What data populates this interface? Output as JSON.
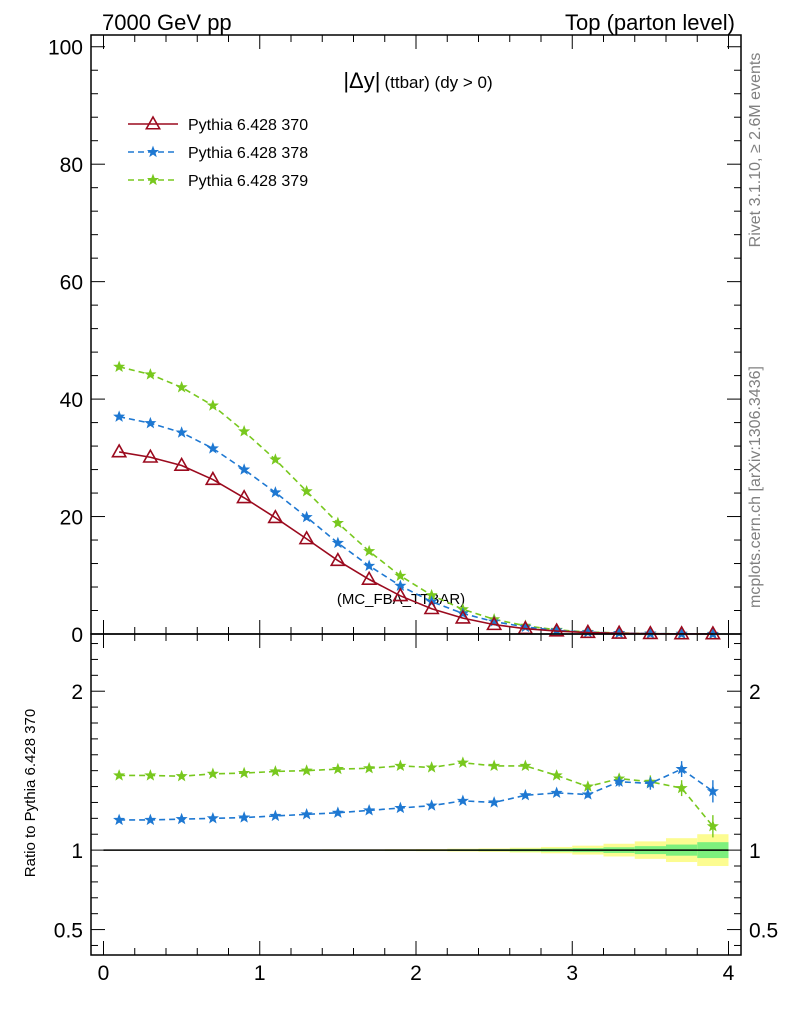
{
  "header": {
    "energy_label": "7000 GeV pp",
    "process_label": "Top (parton level)"
  },
  "side_labels": {
    "rivet": "Rivet 3.1.10, ≥ 2.6M events",
    "mcplots": "mcplots.cern.ch [arXiv:1306.3436]"
  },
  "chart_data": [
    {
      "type": "line",
      "title_main": "|Δy|",
      "title_sub": "(ttbar) (dy > 0)",
      "watermark": "(MC_FBA_TTBAR)",
      "xlim": [
        -0.08,
        4.08
      ],
      "ylim": [
        0,
        102
      ],
      "yticks": [
        0,
        20,
        40,
        60,
        80,
        100
      ],
      "x": [
        0.1,
        0.3,
        0.5,
        0.7,
        0.9,
        1.1,
        1.3,
        1.5,
        1.7,
        1.9,
        2.1,
        2.3,
        2.5,
        2.7,
        2.9,
        3.1,
        3.3,
        3.5,
        3.7,
        3.9
      ],
      "legend_position": "top-left",
      "series": [
        {
          "name": "Pythia 6.428 370",
          "color": "#9b0a1e",
          "marker": "triangle-open",
          "dash": "solid",
          "values": [
            31.0,
            30.1,
            28.7,
            26.3,
            23.2,
            19.8,
            16.2,
            12.5,
            9.3,
            6.5,
            4.3,
            2.7,
            1.6,
            0.9,
            0.5,
            0.25,
            0.12,
            0.05,
            0.02,
            0.01
          ]
        },
        {
          "name": "Pythia 6.428 378",
          "color": "#1e78d2",
          "marker": "star",
          "dash": "dashed",
          "values": [
            37.0,
            35.9,
            34.3,
            31.6,
            28.0,
            24.1,
            19.9,
            15.5,
            11.6,
            8.2,
            5.5,
            3.5,
            2.1,
            1.2,
            0.6,
            0.3,
            0.15,
            0.06,
            0.03,
            0.01
          ]
        },
        {
          "name": "Pythia 6.428 379",
          "color": "#78c81e",
          "marker": "star",
          "dash": "dashed",
          "values": [
            45.5,
            44.2,
            42.0,
            38.9,
            34.5,
            29.7,
            24.3,
            18.9,
            14.1,
            9.9,
            6.6,
            4.2,
            2.5,
            1.4,
            0.7,
            0.35,
            0.17,
            0.07,
            0.03,
            0.01
          ]
        }
      ]
    },
    {
      "type": "line",
      "ylabel": "Ratio to Pythia 6.428 370",
      "xlim": [
        -0.08,
        4.08
      ],
      "ylim": [
        0.34,
        2.36
      ],
      "yticks": [
        0.5,
        1,
        2
      ],
      "ytick_labels": [
        "0.5",
        "1",
        "2"
      ],
      "xticks": [
        0,
        1,
        2,
        3,
        4
      ],
      "xtick_labels": [
        "0",
        "1",
        "2",
        "3",
        "4"
      ],
      "x": [
        0.1,
        0.3,
        0.5,
        0.7,
        0.9,
        1.1,
        1.3,
        1.5,
        1.7,
        1.9,
        2.1,
        2.3,
        2.5,
        2.7,
        2.9,
        3.1,
        3.3,
        3.5,
        3.7,
        3.9
      ],
      "band": {
        "x_edges": [
          0.0,
          0.2,
          0.4,
          0.6,
          0.8,
          1.0,
          1.2,
          1.4,
          1.6,
          1.8,
          2.0,
          2.2,
          2.4,
          2.6,
          2.8,
          3.0,
          3.2,
          3.4,
          3.6,
          3.8,
          4.0
        ],
        "inner_halfwidth": [
          0.002,
          0.002,
          0.002,
          0.002,
          0.002,
          0.002,
          0.003,
          0.003,
          0.003,
          0.004,
          0.004,
          0.005,
          0.006,
          0.008,
          0.01,
          0.013,
          0.018,
          0.025,
          0.035,
          0.05
        ],
        "outer_halfwidth": [
          0.003,
          0.003,
          0.003,
          0.003,
          0.003,
          0.003,
          0.004,
          0.005,
          0.005,
          0.006,
          0.007,
          0.009,
          0.011,
          0.015,
          0.02,
          0.028,
          0.04,
          0.055,
          0.075,
          0.1
        ],
        "inner_color": "#7df07d",
        "outer_color": "#fcfc91"
      },
      "series": [
        {
          "name": "Pythia 6.428 378",
          "color": "#1e78d2",
          "values": [
            1.19,
            1.19,
            1.195,
            1.2,
            1.205,
            1.215,
            1.225,
            1.235,
            1.25,
            1.265,
            1.28,
            1.31,
            1.3,
            1.345,
            1.36,
            1.35,
            1.43,
            1.42,
            1.51,
            1.37
          ],
          "errors": [
            0.004,
            0.004,
            0.004,
            0.004,
            0.005,
            0.005,
            0.005,
            0.006,
            0.006,
            0.007,
            0.008,
            0.009,
            0.01,
            0.012,
            0.015,
            0.02,
            0.03,
            0.04,
            0.05,
            0.07
          ]
        },
        {
          "name": "Pythia 6.428 379",
          "color": "#78c81e",
          "values": [
            1.47,
            1.47,
            1.465,
            1.48,
            1.485,
            1.495,
            1.5,
            1.51,
            1.515,
            1.53,
            1.52,
            1.55,
            1.53,
            1.53,
            1.47,
            1.4,
            1.45,
            1.43,
            1.39,
            1.15
          ],
          "errors": [
            0.004,
            0.004,
            0.004,
            0.004,
            0.005,
            0.005,
            0.005,
            0.006,
            0.006,
            0.007,
            0.008,
            0.009,
            0.01,
            0.012,
            0.015,
            0.02,
            0.03,
            0.04,
            0.05,
            0.07
          ]
        }
      ]
    }
  ]
}
